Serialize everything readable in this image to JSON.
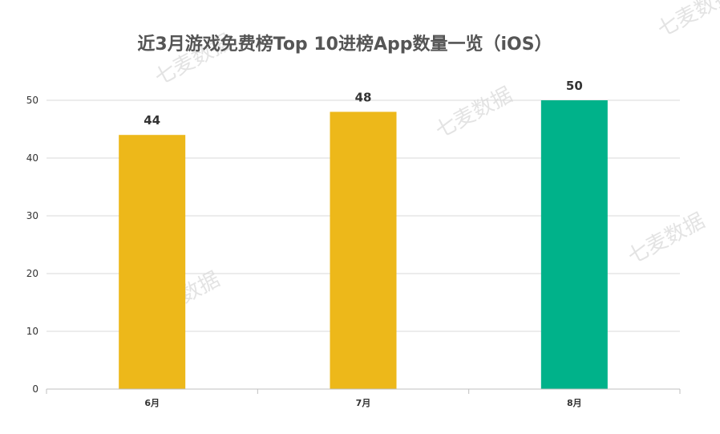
{
  "watermark": {
    "text": "七麦数据"
  },
  "chart_data": {
    "type": "bar",
    "title": "近3月游戏免费榜Top 10进榜App数量一览（iOS）",
    "xlabel": "",
    "ylabel": "",
    "categories": [
      "6月",
      "7月",
      "8月"
    ],
    "values": [
      44,
      48,
      50
    ],
    "data_labels": [
      "44",
      "48",
      "50"
    ],
    "colors": [
      "#EDB81A",
      "#EDB81A",
      "#00B28A"
    ],
    "ylim": [
      0,
      50
    ],
    "yticks": [
      0,
      10,
      20,
      30,
      40,
      50
    ],
    "ytick_labels": [
      "0",
      "10",
      "20",
      "30",
      "40",
      "50"
    ],
    "grid": true,
    "legend": "none"
  }
}
